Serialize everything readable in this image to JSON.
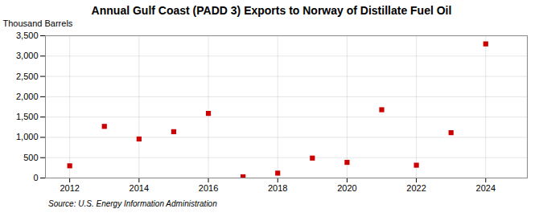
{
  "chart_data": {
    "type": "scatter",
    "title": "Annual Gulf Coast (PADD 3) Exports to Norway of Distillate Fuel Oil",
    "ylabel": "Thousand Barrels",
    "annotations": [
      "Source: U.S. Energy Information Administration"
    ],
    "x": [
      2012,
      2013,
      2014,
      2015,
      2016,
      2017,
      2018,
      2019,
      2020,
      2021,
      2022,
      2023,
      2024
    ],
    "values": [
      300,
      1270,
      960,
      1140,
      1590,
      30,
      120,
      490,
      385,
      1680,
      315,
      1115,
      3300
    ],
    "color": "#CC0000",
    "marker": "square",
    "grid": true,
    "xlim": [
      2011.3,
      2025.2
    ],
    "xticks": [
      2012,
      2014,
      2016,
      2018,
      2020,
      2022,
      2024
    ],
    "ylim": [
      0,
      3500
    ],
    "yticks": [
      0,
      500,
      {
        "value": 1000,
        "label": "1,000"
      },
      {
        "value": 1500,
        "label": "1,500"
      },
      {
        "value": 2000,
        "label": "2,000"
      },
      {
        "value": 2500,
        "label": "2,500"
      },
      {
        "value": 3000,
        "label": "3,000"
      },
      {
        "value": 3500,
        "label": "3,500"
      }
    ]
  }
}
